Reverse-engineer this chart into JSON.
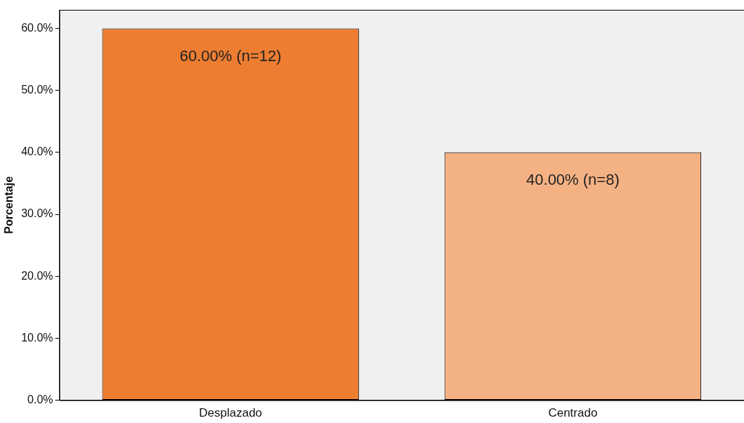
{
  "chart_data": {
    "type": "bar",
    "ylabel": "Porcentaje",
    "categories": [
      "Desplazado",
      "Centrado"
    ],
    "values": [
      60,
      40
    ],
    "colors": [
      "#ed7d31",
      "#f4b183"
    ],
    "value_labels": [
      "60.00% (n=12)",
      "40.00% (n=8)"
    ],
    "ylim": [
      0,
      63
    ],
    "yticks": [
      {
        "value": 0,
        "label": "0.0%"
      },
      {
        "value": 10,
        "label": "10.0%"
      },
      {
        "value": 20,
        "label": "20.0%"
      },
      {
        "value": 30,
        "label": "30.0%"
      },
      {
        "value": 40,
        "label": "40.0%"
      },
      {
        "value": 50,
        "label": "50.0%"
      },
      {
        "value": 60,
        "label": "60.0%"
      }
    ],
    "grid": false,
    "legend": false
  }
}
